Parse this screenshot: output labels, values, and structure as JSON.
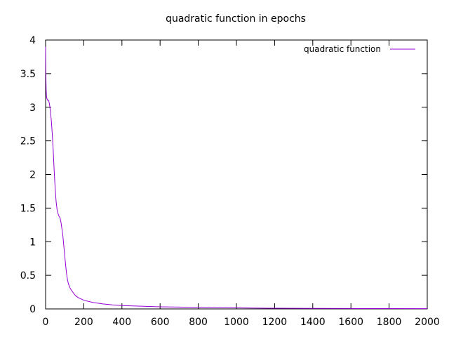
{
  "chart_data": {
    "type": "line",
    "title": "quadratic function in epochs",
    "xlabel": "",
    "ylabel": "",
    "xlim": [
      0,
      2000
    ],
    "ylim": [
      0,
      4
    ],
    "xticks": [
      0,
      200,
      400,
      600,
      800,
      1000,
      1200,
      1400,
      1600,
      1800,
      2000
    ],
    "yticks": [
      0,
      0.5,
      1,
      1.5,
      2,
      2.5,
      3,
      3.5,
      4
    ],
    "ytick_labels": [
      "0",
      "0.5",
      "1",
      "1.5",
      "2",
      "2.5",
      "3",
      "3.5",
      "4"
    ],
    "grid": false,
    "legend_position": "top-right",
    "series": [
      {
        "name": "quadratic function",
        "color": "#9400d3",
        "x": [
          0,
          1,
          3,
          5,
          8,
          12,
          16,
          20,
          25,
          30,
          35,
          40,
          45,
          50,
          55,
          60,
          65,
          70,
          75,
          80,
          85,
          90,
          95,
          100,
          105,
          110,
          115,
          120,
          130,
          140,
          150,
          160,
          170,
          180,
          200,
          220,
          250,
          300,
          350,
          400,
          500,
          600,
          800,
          1000,
          1200,
          1400,
          1600,
          1800,
          2000
        ],
        "y": [
          3.9,
          3.55,
          3.25,
          3.15,
          3.12,
          3.1,
          3.1,
          3.05,
          2.95,
          2.8,
          2.6,
          2.35,
          2.05,
          1.8,
          1.6,
          1.48,
          1.42,
          1.38,
          1.36,
          1.3,
          1.2,
          1.1,
          0.95,
          0.8,
          0.65,
          0.52,
          0.43,
          0.37,
          0.3,
          0.26,
          0.22,
          0.19,
          0.17,
          0.155,
          0.13,
          0.115,
          0.095,
          0.075,
          0.06,
          0.05,
          0.04,
          0.032,
          0.022,
          0.015,
          0.01,
          0.008,
          0.006,
          0.005,
          0.004
        ]
      }
    ]
  }
}
